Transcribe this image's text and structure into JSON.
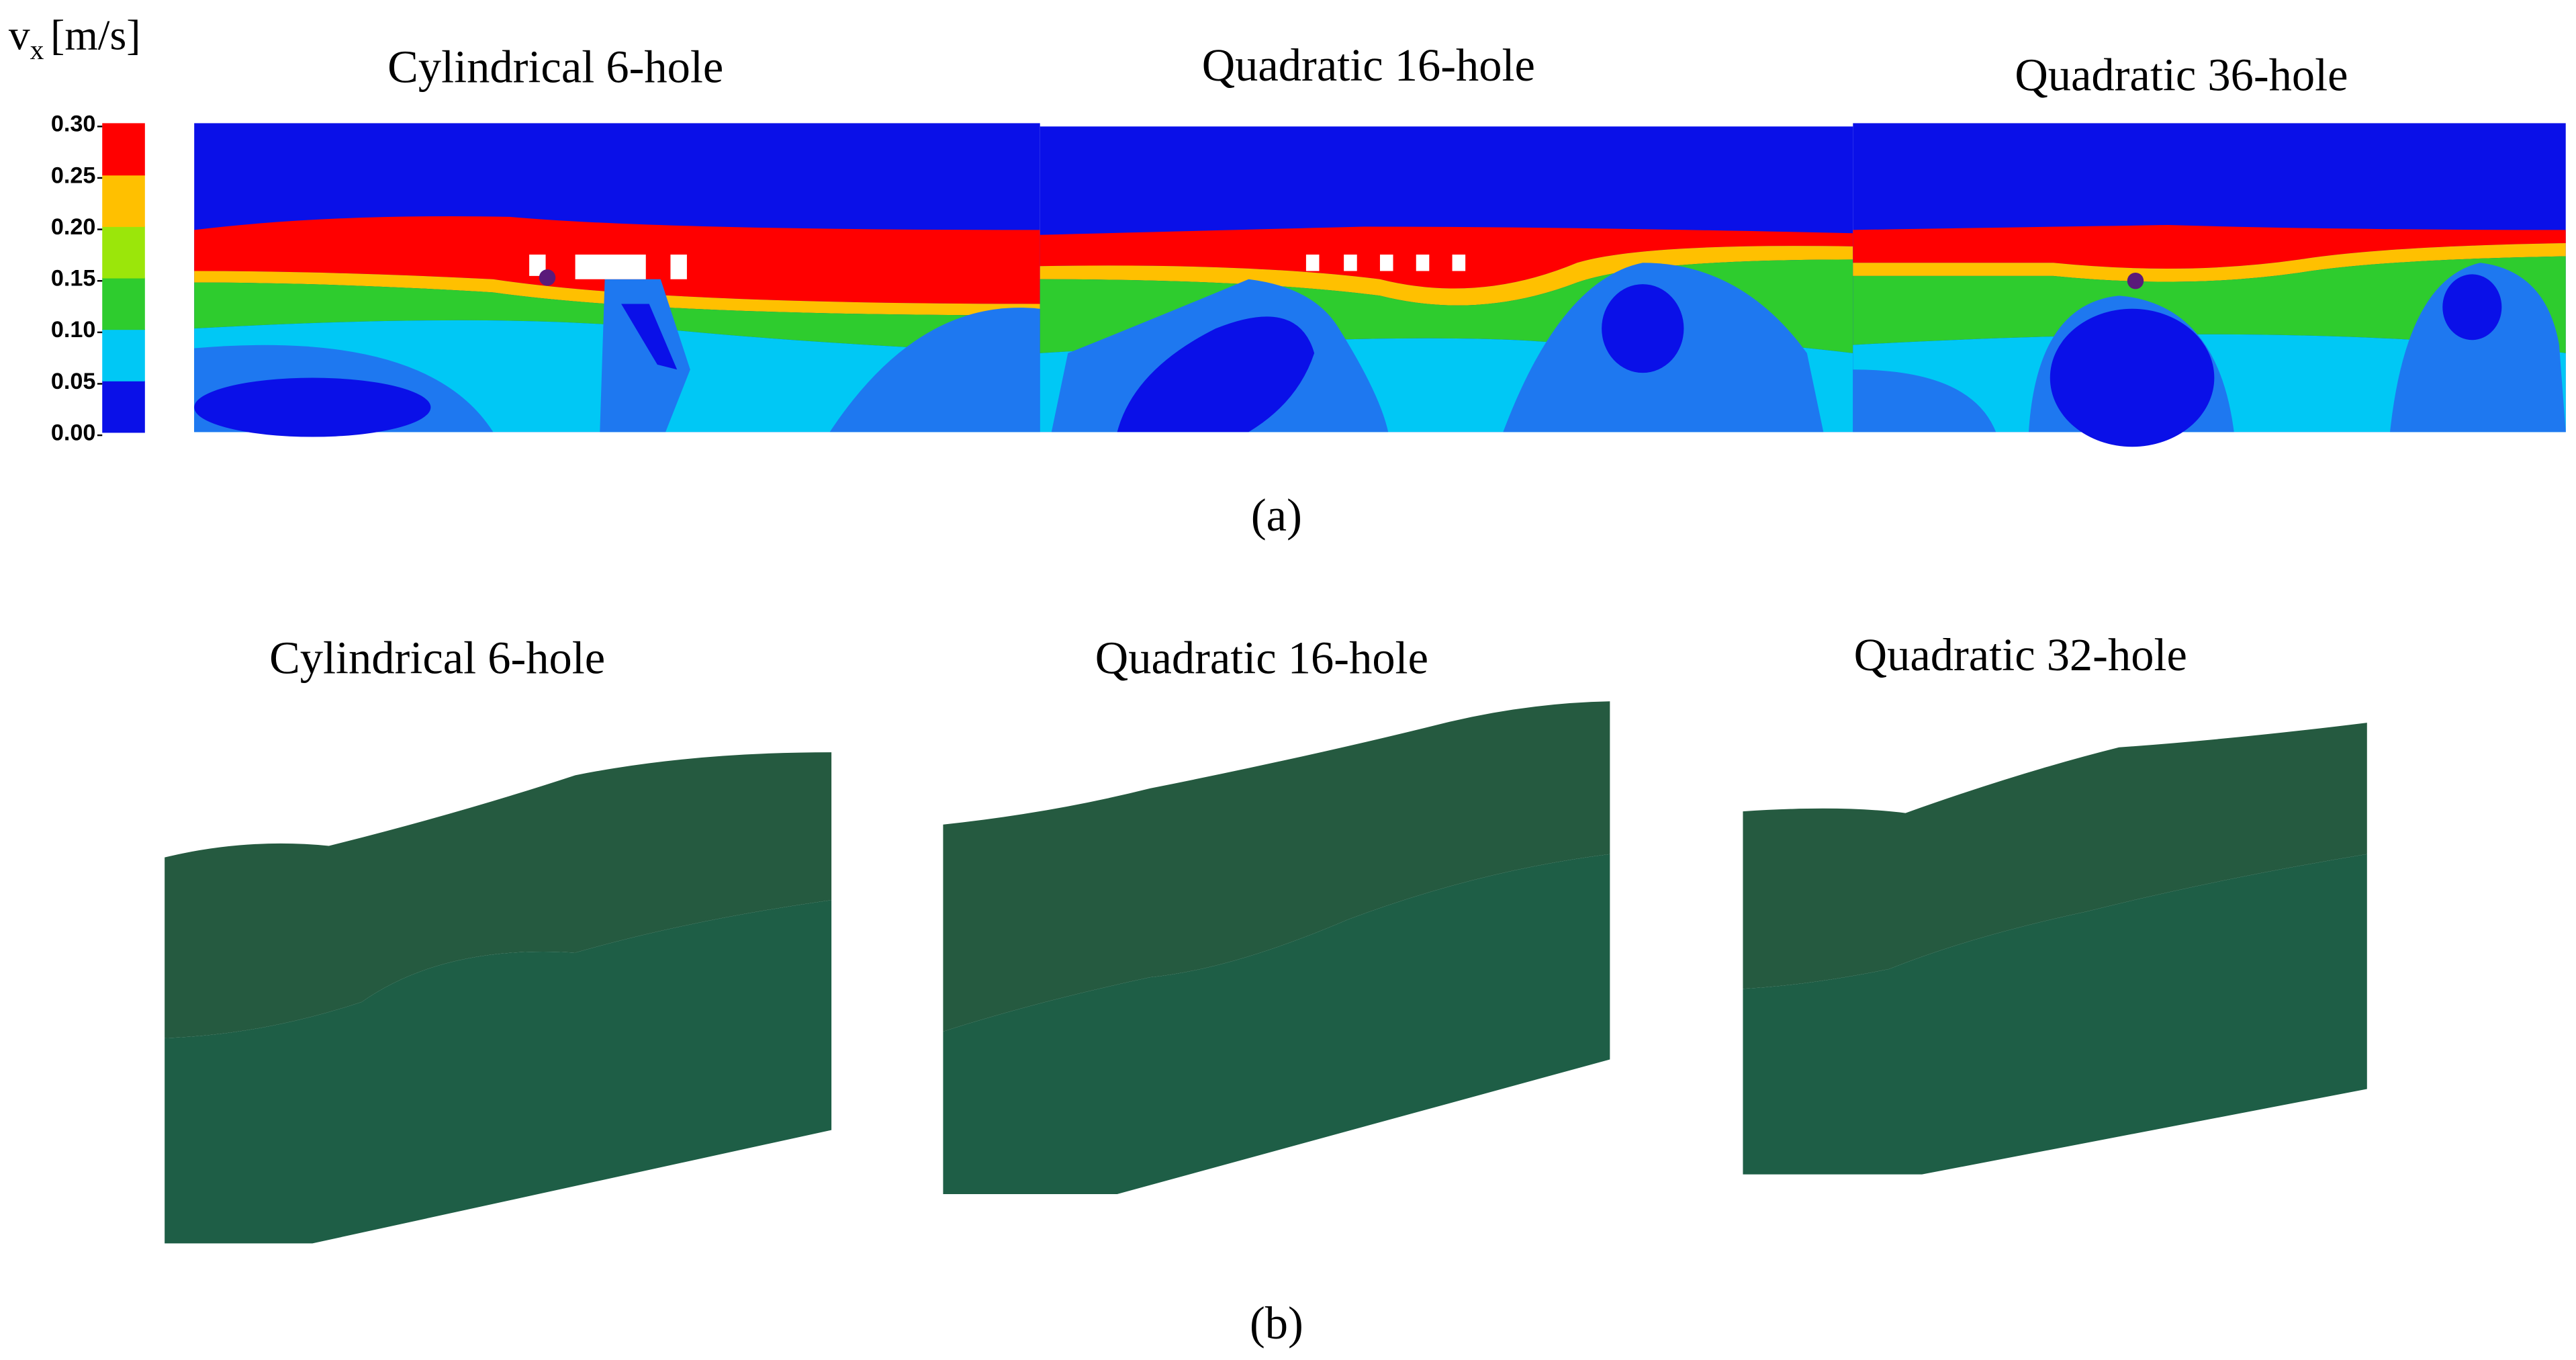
{
  "colorbar": {
    "variable": "v",
    "subscript": "x",
    "unit": "[m/s]",
    "ticks": [
      "0.30",
      "0.25",
      "0.20",
      "0.15",
      "0.10",
      "0.05",
      "0.00"
    ],
    "colors": [
      "#0a10e8",
      "#00c8f5",
      "#2ecc2e",
      "#9be60a",
      "#ffc000",
      "#ff0000"
    ]
  },
  "panel_a": {
    "label": "(a)",
    "titles": [
      "Cylindrical 6-hole",
      "Quadratic 16-hole",
      "Quadratic 36-hole"
    ]
  },
  "panel_b": {
    "label": "(b)",
    "titles": [
      "Cylindrical 6-hole",
      "Quadratic 16-hole",
      "Quadratic 32-hole"
    ]
  }
}
